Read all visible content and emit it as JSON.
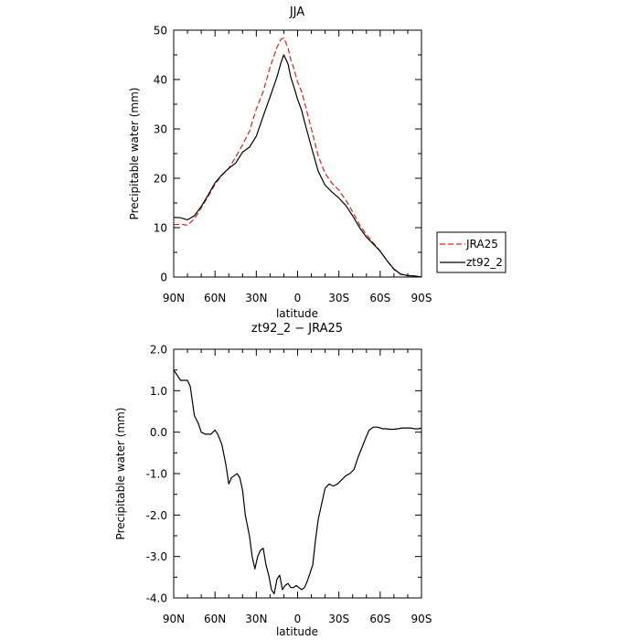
{
  "chart_data": [
    {
      "type": "line",
      "title": "JJA",
      "xlabel": "latitude",
      "ylabel": "Precipitable water (mm)",
      "xlim": [
        90,
        -90
      ],
      "ylim": [
        0,
        50
      ],
      "x_ticks": [
        90,
        60,
        30,
        0,
        -30,
        -60,
        -90
      ],
      "x_tick_labels": [
        "90N",
        "60N",
        "30N",
        "0",
        "30S",
        "60S",
        "90S"
      ],
      "y_ticks": [
        0,
        10,
        20,
        30,
        40,
        50
      ],
      "y_tick_labels": [
        "0",
        "10",
        "20",
        "30",
        "40",
        "50"
      ],
      "grid": false,
      "legend_position": "right",
      "series": [
        {
          "name": "JRA25",
          "color": "#e0201c",
          "dash": "dashed",
          "x": [
            90,
            85,
            80,
            75,
            70,
            65,
            60,
            55,
            50,
            45,
            40,
            35,
            30,
            25,
            20,
            15,
            12,
            10,
            7,
            5,
            3,
            0,
            -3,
            -5,
            -10,
            -15,
            -20,
            -25,
            -30,
            -35,
            -40,
            -45,
            -50,
            -55,
            -60,
            -65,
            -70,
            -75,
            -80,
            -85,
            -90
          ],
          "y": [
            10.6,
            10.7,
            10.5,
            11.8,
            14,
            16.3,
            18.8,
            20.6,
            22,
            24.3,
            26.8,
            29.5,
            34,
            37.6,
            42.5,
            46.5,
            48.2,
            48.4,
            46.5,
            44,
            42.5,
            39.5,
            37.5,
            35.4,
            30,
            24.5,
            21,
            19,
            17.6,
            15.6,
            13.2,
            10.6,
            8.6,
            6.9,
            5.3,
            3.3,
            1.5,
            0.5,
            0.3,
            0.2,
            0
          ]
        },
        {
          "name": "zt92_2",
          "color": "#000000",
          "dash": "solid",
          "x": [
            90,
            85,
            80,
            75,
            70,
            65,
            60,
            55,
            50,
            45,
            40,
            35,
            30,
            25,
            20,
            15,
            12,
            10,
            7,
            5,
            3,
            0,
            -3,
            -5,
            -10,
            -15,
            -20,
            -25,
            -30,
            -35,
            -40,
            -45,
            -50,
            -55,
            -60,
            -65,
            -70,
            -75,
            -80,
            -85,
            -90
          ],
          "y": [
            12.1,
            12,
            11.6,
            12.4,
            14.3,
            16.6,
            19.1,
            20.7,
            22,
            23.1,
            25.3,
            26.3,
            28.5,
            32.6,
            36.5,
            40.5,
            43.5,
            45,
            43.2,
            40.5,
            38.8,
            36,
            33.7,
            31.5,
            26.3,
            21.4,
            18.6,
            17.2,
            16,
            14.5,
            12.4,
            10,
            8.1,
            6.7,
            5.2,
            3.3,
            1.6,
            0.6,
            0.3,
            0.2,
            0
          ]
        }
      ]
    },
    {
      "type": "line",
      "title": "zt92_2 − JRA25",
      "xlabel": "latitude",
      "ylabel": "Precipitable water (mm)",
      "xlim": [
        90,
        -90
      ],
      "ylim": [
        -4,
        2
      ],
      "x_ticks": [
        90,
        60,
        30,
        0,
        -30,
        -60,
        -90
      ],
      "x_tick_labels": [
        "90N",
        "60N",
        "30N",
        "0",
        "30S",
        "60S",
        "90S"
      ],
      "y_ticks": [
        2,
        1,
        0,
        -1,
        -2,
        -3,
        -4
      ],
      "y_tick_labels": [
        "2.0",
        "1.0",
        "0.0",
        "-1.0",
        "-2.0",
        "-3.0",
        "-4.0"
      ],
      "grid": false,
      "series": [
        {
          "color": "#000000",
          "dash": "solid",
          "x": [
            90,
            87,
            85,
            83,
            80,
            78,
            75,
            72,
            70,
            67,
            65,
            63,
            60,
            58,
            55,
            52,
            50,
            48,
            46,
            44,
            42,
            40,
            38,
            35,
            33,
            31,
            29,
            27,
            25,
            23,
            21,
            19,
            17,
            15,
            13,
            11,
            9,
            7,
            5,
            3,
            1,
            -1,
            -3,
            -5,
            -7,
            -9,
            -11,
            -13,
            -15,
            -17,
            -20,
            -23,
            -26,
            -29,
            -32,
            -35,
            -38,
            -41,
            -44,
            -47,
            -50,
            -52,
            -55,
            -58,
            -60,
            -62,
            -65,
            -67,
            -70,
            -73,
            -76,
            -79,
            -82,
            -85,
            -88,
            -90
          ],
          "y": [
            1.5,
            1.35,
            1.25,
            1.25,
            1.25,
            1.1,
            0.4,
            0.2,
            0,
            -0.05,
            -0.05,
            -0.05,
            0.05,
            -0.05,
            -0.3,
            -0.8,
            -1.25,
            -1.1,
            -1.05,
            -1.0,
            -1.1,
            -1.4,
            -2.0,
            -2.5,
            -3.0,
            -3.3,
            -3.0,
            -2.85,
            -2.8,
            -3.2,
            -3.45,
            -3.8,
            -3.9,
            -3.55,
            -3.45,
            -3.8,
            -3.7,
            -3.65,
            -3.75,
            -3.75,
            -3.7,
            -3.75,
            -3.8,
            -3.75,
            -3.6,
            -3.4,
            -3.2,
            -2.6,
            -2.1,
            -1.8,
            -1.35,
            -1.25,
            -1.3,
            -1.25,
            -1.15,
            -1.05,
            -1.0,
            -0.9,
            -0.6,
            -0.35,
            -0.1,
            0.05,
            0.12,
            0.12,
            0.1,
            0.08,
            0.08,
            0.07,
            0.07,
            0.08,
            0.1,
            0.1,
            0.1,
            0.08,
            0.08,
            0.1
          ]
        }
      ]
    }
  ]
}
